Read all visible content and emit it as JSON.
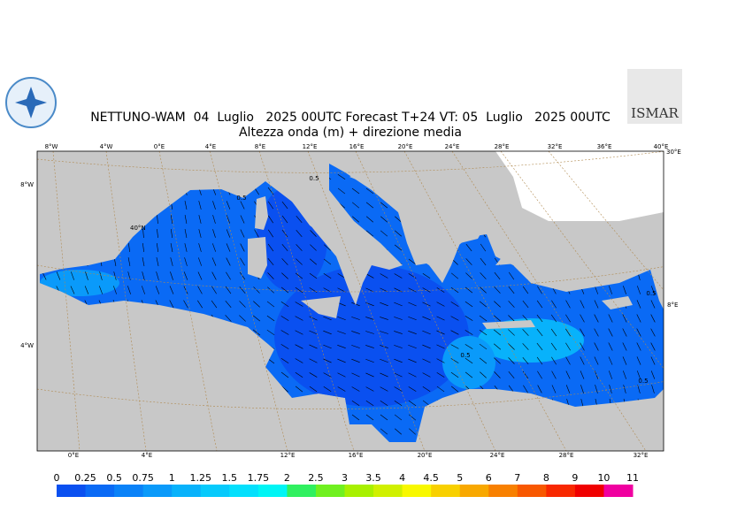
{
  "header": {
    "title": "NETTUNO-WAM  04  Luglio   2025 00UTC Forecast T+24 VT: 05  Luglio   2025 00UTC",
    "subtitle": "Altezza onda (m) + direzione media",
    "logo": "ISMAR"
  },
  "map": {
    "top_labels": [
      "8°W",
      "4°W",
      "0°E",
      "4°E",
      "8°E",
      "12°E",
      "16°E",
      "20°E",
      "24°E",
      "28°E",
      "32°E",
      "36°E",
      "40°E"
    ],
    "bottom_labels": [
      "0°E",
      "4°E",
      "12°E",
      "16°E",
      "20°E",
      "24°E",
      "28°E",
      "32°E"
    ],
    "left_labels": [
      "8°W",
      "40°N",
      "4°W"
    ],
    "right_labels": [
      "30°E",
      "8°E"
    ],
    "contour_labels": [
      "0.5",
      "0.5",
      "0.5",
      "0.5",
      "0.5"
    ]
  },
  "colorbar": {
    "labels": [
      "0",
      "0.25",
      "0.5",
      "0.75",
      "1",
      "1.25",
      "1.5",
      "1.75",
      "2",
      "2.5",
      "3",
      "3.5",
      "4",
      "4.5",
      "5",
      "6",
      "7",
      "8",
      "9",
      "10",
      "11"
    ],
    "colors": [
      "#0a50f0",
      "#0a6af5",
      "#0a82f8",
      "#0a9afa",
      "#08b2fb",
      "#06cafc",
      "#04e0fd",
      "#00f5f5",
      "#30f060",
      "#70f020",
      "#a8f000",
      "#d0f000",
      "#f8f800",
      "#f8d000",
      "#f8a800",
      "#f88000",
      "#f85800",
      "#f82800",
      "#f00000",
      "#f000a0"
    ]
  }
}
